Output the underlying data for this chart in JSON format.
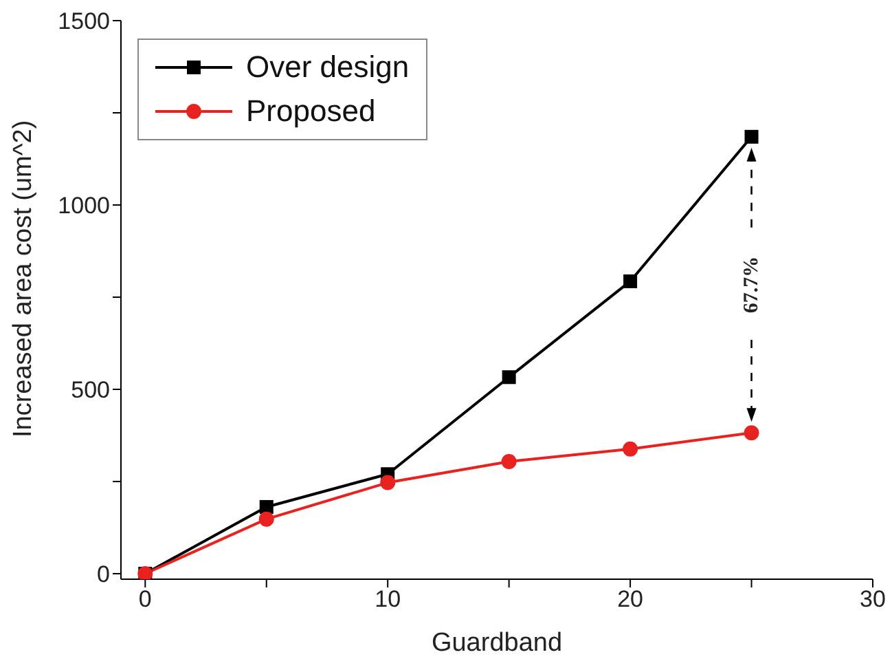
{
  "chart_data": {
    "type": "line",
    "xlabel": "Guardband",
    "ylabel": "Increased area cost (um^2)",
    "x": [
      0,
      5,
      10,
      15,
      20,
      25
    ],
    "series": [
      {
        "name": "Over design",
        "color": "#000000",
        "marker": "square",
        "values": [
          0,
          181,
          270,
          533,
          793,
          1185
        ]
      },
      {
        "name": "Proposed",
        "color": "#e8231f",
        "marker": "circle",
        "values": [
          0,
          148,
          247,
          304,
          338,
          382
        ]
      }
    ],
    "xlim": [
      -1,
      30
    ],
    "xticks": [
      0,
      {
        "value": 5,
        "label": null
      },
      10,
      {
        "value": 15,
        "label": null
      },
      20,
      {
        "value": 25,
        "label": null
      },
      30
    ],
    "ylim": [
      -15,
      1500
    ],
    "yticks": [
      0,
      {
        "value": 250,
        "label": null
      },
      500,
      {
        "value": 750,
        "label": null
      },
      1000,
      {
        "value": 1250,
        "label": null
      },
      1500
    ],
    "annotations": [
      "67.7%"
    ],
    "legend": "top left",
    "grid": false,
    "line_style": "solid"
  }
}
